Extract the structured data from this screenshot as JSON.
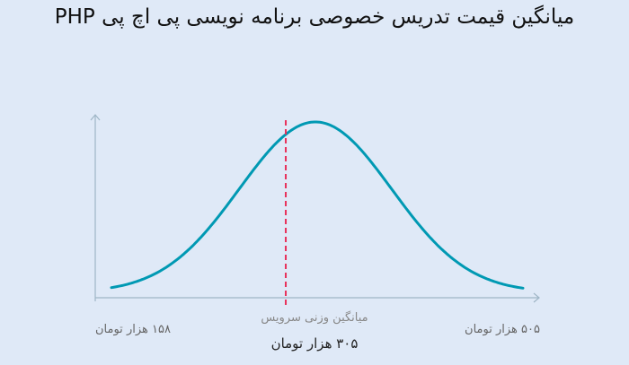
{
  "title": "میانگین قیمت تدریس خصوصی برنامه نویسی پی اچ پی PHP",
  "chart_data": {
    "type": "area",
    "shape": "normal-distribution",
    "x_min_label": "۱۵۸ هزار تومان",
    "x_max_label": "۵۰۵ هزار تومان",
    "mean_caption": "میانگین وزنی سرویس",
    "mean_label": "۳۰۵ هزار تومان",
    "x_min_value": 158,
    "x_max_value": 505,
    "mean_value": 305,
    "unit": "هزار تومان",
    "grid": false,
    "legend": "none"
  },
  "colors": {
    "background": "#dfe9f7",
    "curve": "#0099b3",
    "mean_line": "#e8305a",
    "axis": "#9fb6c6"
  }
}
